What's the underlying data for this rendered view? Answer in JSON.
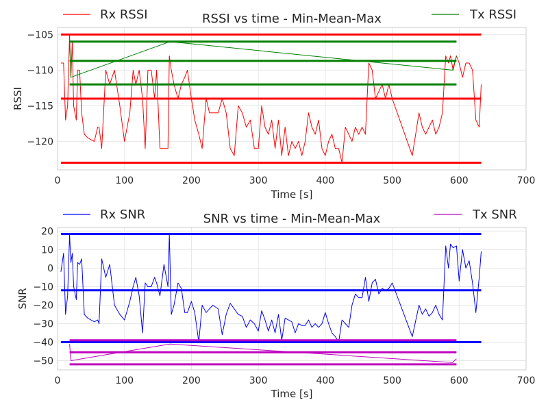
{
  "chart_data": [
    {
      "type": "line",
      "title": "RSSI vs time - Min-Mean-Max",
      "xlabel": "Time [s]",
      "ylabel": "RSSI",
      "xlim": [
        0,
        700
      ],
      "ylim": [
        -124,
        -104
      ],
      "xticks": [
        0,
        100,
        200,
        300,
        400,
        500,
        600,
        700
      ],
      "yticks": [
        -105,
        -110,
        -115,
        -120
      ],
      "ytick_labels": [
        "−105",
        "−110",
        "−115",
        "−120"
      ],
      "grid": true,
      "legend": [
        {
          "label": "Rx RSSI",
          "color": "#ff0000",
          "position": "top-left"
        },
        {
          "label": "Tx RSSI",
          "color": "#008000",
          "position": "top-right"
        }
      ],
      "series": [
        {
          "name": "Rx RSSI",
          "color": "#ff0000",
          "x": [
            5,
            9,
            12,
            15,
            18,
            20,
            22,
            24,
            28,
            30,
            33,
            36,
            40,
            45,
            55,
            60,
            62,
            66,
            72,
            78,
            85,
            93,
            100,
            108,
            113,
            117,
            122,
            127,
            131,
            135,
            140,
            145,
            148,
            153,
            159,
            165,
            167,
            170,
            174,
            180,
            185,
            190,
            194,
            200,
            205,
            211,
            216,
            222,
            227,
            232,
            240,
            246,
            252,
            258,
            264,
            270,
            276,
            282,
            288,
            294,
            300,
            305,
            310,
            315,
            320,
            325,
            330,
            335,
            340,
            345,
            350,
            355,
            360,
            365,
            370,
            375,
            380,
            385,
            390,
            395,
            400,
            405,
            410,
            415,
            420,
            425,
            430,
            435,
            440,
            445,
            450,
            455,
            460,
            465,
            470,
            475,
            480,
            485,
            490,
            495,
            500,
            530,
            540,
            545,
            550,
            555,
            560,
            565,
            570,
            575,
            580,
            584,
            587,
            591,
            596,
            600,
            605,
            610,
            615,
            620,
            625,
            630,
            633
          ],
          "y": [
            -109,
            -109,
            -117,
            -115,
            -105,
            -111,
            -106,
            -115,
            -117,
            -110,
            -110,
            -116,
            -119,
            -119.5,
            -120,
            -118,
            -118,
            -121,
            -110,
            -112,
            -110,
            -115,
            -120,
            -116,
            -110,
            -112,
            -110,
            -114,
            -121,
            -110,
            -110,
            -114,
            -110,
            -121,
            -121,
            -121,
            -108,
            -110,
            -112,
            -114,
            -112,
            -111,
            -110,
            -114,
            -117,
            -119,
            -121,
            -114,
            -116,
            -116,
            -116,
            -114,
            -116,
            -121,
            -122,
            -115,
            -116,
            -118,
            -117,
            -121,
            -121,
            -115,
            -118,
            -119,
            -117,
            -121,
            -117,
            -122,
            -118,
            -122,
            -120,
            -121,
            -120,
            -122,
            -120,
            -116,
            -118,
            -119,
            -117,
            -121,
            -122,
            -120,
            -119,
            -121,
            -121,
            -123,
            -118,
            -119,
            -120,
            -118,
            -119,
            -118,
            -119,
            -109,
            -110,
            -114,
            -113,
            -112,
            -114,
            -112,
            -114,
            -122,
            -116,
            -118,
            -119,
            -118,
            -117,
            -119,
            -118,
            -116,
            -108,
            -109,
            -108,
            -110,
            -108,
            -109,
            -111,
            -109,
            -109,
            -110,
            -117,
            -118,
            -112
          ],
          "line_width": 1
        },
        {
          "name": "Tx RSSI",
          "color": "#008000",
          "x": [
            18,
            20,
            168,
            590,
            596
          ],
          "y": [
            -106,
            -111,
            -106,
            -110,
            -108
          ],
          "line_width": 1
        },
        {
          "color": "#ff0000",
          "x": [
            5,
            633
          ],
          "y": [
            -105,
            -105
          ],
          "line_width": 3
        },
        {
          "color": "#ff0000",
          "x": [
            5,
            633
          ],
          "y": [
            -114,
            -114
          ],
          "line_width": 3
        },
        {
          "color": "#ff0000",
          "x": [
            5,
            633
          ],
          "y": [
            -123,
            -123
          ],
          "line_width": 3
        },
        {
          "color": "#008000",
          "x": [
            18,
            596
          ],
          "y": [
            -106,
            -106
          ],
          "line_width": 3
        },
        {
          "color": "#008000",
          "x": [
            18,
            596
          ],
          "y": [
            -108.7,
            -108.7
          ],
          "line_width": 3
        },
        {
          "color": "#008000",
          "x": [
            18,
            596
          ],
          "y": [
            -112,
            -112
          ],
          "line_width": 3
        }
      ]
    },
    {
      "type": "line",
      "title": "SNR vs time - Min-Mean-Max",
      "xlabel": "Time [s]",
      "ylabel": "SNR",
      "xlim": [
        0,
        700
      ],
      "ylim": [
        -55,
        22
      ],
      "xticks": [
        0,
        100,
        200,
        300,
        400,
        500,
        600,
        700
      ],
      "yticks": [
        20,
        10,
        0,
        -10,
        -20,
        -30,
        -40,
        -50
      ],
      "ytick_labels": [
        "20",
        "10",
        "0",
        "−10",
        "−20",
        "−30",
        "−40",
        "−50"
      ],
      "grid": true,
      "legend": [
        {
          "label": "Rx SNR",
          "color": "#0000ff",
          "position": "top-left"
        },
        {
          "label": "Tx SNR",
          "color": "#bf00bf",
          "position": "top-right"
        }
      ],
      "series": [
        {
          "name": "Rx SNR",
          "color": "#0000ff",
          "x": [
            5,
            9,
            12,
            15,
            18,
            20,
            22,
            24,
            28,
            30,
            33,
            36,
            40,
            45,
            55,
            60,
            62,
            66,
            72,
            78,
            85,
            93,
            100,
            108,
            113,
            117,
            122,
            127,
            131,
            135,
            140,
            145,
            148,
            153,
            159,
            165,
            167,
            170,
            174,
            180,
            185,
            190,
            194,
            200,
            205,
            211,
            216,
            222,
            227,
            232,
            240,
            246,
            252,
            258,
            264,
            270,
            276,
            282,
            288,
            294,
            300,
            305,
            310,
            315,
            320,
            325,
            330,
            335,
            340,
            345,
            350,
            355,
            360,
            365,
            370,
            375,
            380,
            385,
            390,
            395,
            400,
            405,
            410,
            415,
            420,
            425,
            430,
            435,
            440,
            445,
            450,
            455,
            460,
            465,
            470,
            475,
            480,
            485,
            490,
            495,
            500,
            530,
            540,
            545,
            550,
            555,
            560,
            565,
            570,
            575,
            580,
            584,
            587,
            591,
            596,
            600,
            605,
            610,
            615,
            620,
            625,
            630,
            633
          ],
          "y": [
            -2,
            8,
            -25,
            -15,
            18,
            3,
            8,
            -10,
            -17,
            3,
            2,
            5,
            -25,
            -27,
            -29,
            -28,
            -30,
            5,
            -5,
            2,
            -20,
            -25,
            -28,
            -18,
            -10,
            -5,
            -15,
            -35,
            -8,
            -10,
            -10,
            -5,
            -8,
            -15,
            2,
            -10,
            18,
            -25,
            -20,
            -8,
            -11,
            -24,
            -24,
            -18,
            -24,
            -40,
            -20,
            -24,
            -22,
            -20,
            -22,
            -36,
            -25,
            -19,
            -22,
            -25,
            -26,
            -32,
            -28,
            -30,
            -34,
            -23,
            -28,
            -34,
            -28,
            -35,
            -25,
            -39,
            -27,
            -28,
            -29,
            -35,
            -30,
            -31,
            -31,
            -28,
            -32,
            -30,
            -32,
            -30,
            -24,
            -30,
            -35,
            -37,
            -40,
            -28,
            -30,
            -32,
            -20,
            -14,
            -16,
            -16,
            -5,
            -18,
            -8,
            -6,
            -14,
            -11,
            -12,
            -11,
            -8,
            -37,
            -20,
            -25,
            -22,
            -26,
            -24,
            -20,
            -25,
            -28,
            12,
            0,
            13,
            11,
            12,
            -7,
            10,
            0,
            4,
            -8,
            -24,
            -5,
            9
          ],
          "line_width": 1
        },
        {
          "name": "Tx SNR",
          "color": "#bf00bf",
          "x": [
            18,
            20,
            168,
            590,
            596
          ],
          "y": [
            -41,
            -50,
            -41,
            -51,
            -49
          ],
          "line_width": 1
        },
        {
          "color": "#0000ff",
          "x": [
            5,
            633
          ],
          "y": [
            18.5,
            18.5
          ],
          "line_width": 3
        },
        {
          "color": "#0000ff",
          "x": [
            5,
            633
          ],
          "y": [
            -12,
            -12
          ],
          "line_width": 3
        },
        {
          "color": "#0000ff",
          "x": [
            5,
            633
          ],
          "y": [
            -40,
            -40
          ],
          "line_width": 3
        },
        {
          "color": "#bf00bf",
          "x": [
            18,
            596
          ],
          "y": [
            -39,
            -39
          ],
          "line_width": 3
        },
        {
          "color": "#bf00bf",
          "x": [
            18,
            596
          ],
          "y": [
            -45.5,
            -45.5
          ],
          "line_width": 3
        },
        {
          "color": "#bf00bf",
          "x": [
            18,
            596
          ],
          "y": [
            -52,
            -52
          ],
          "line_width": 3
        }
      ]
    }
  ]
}
